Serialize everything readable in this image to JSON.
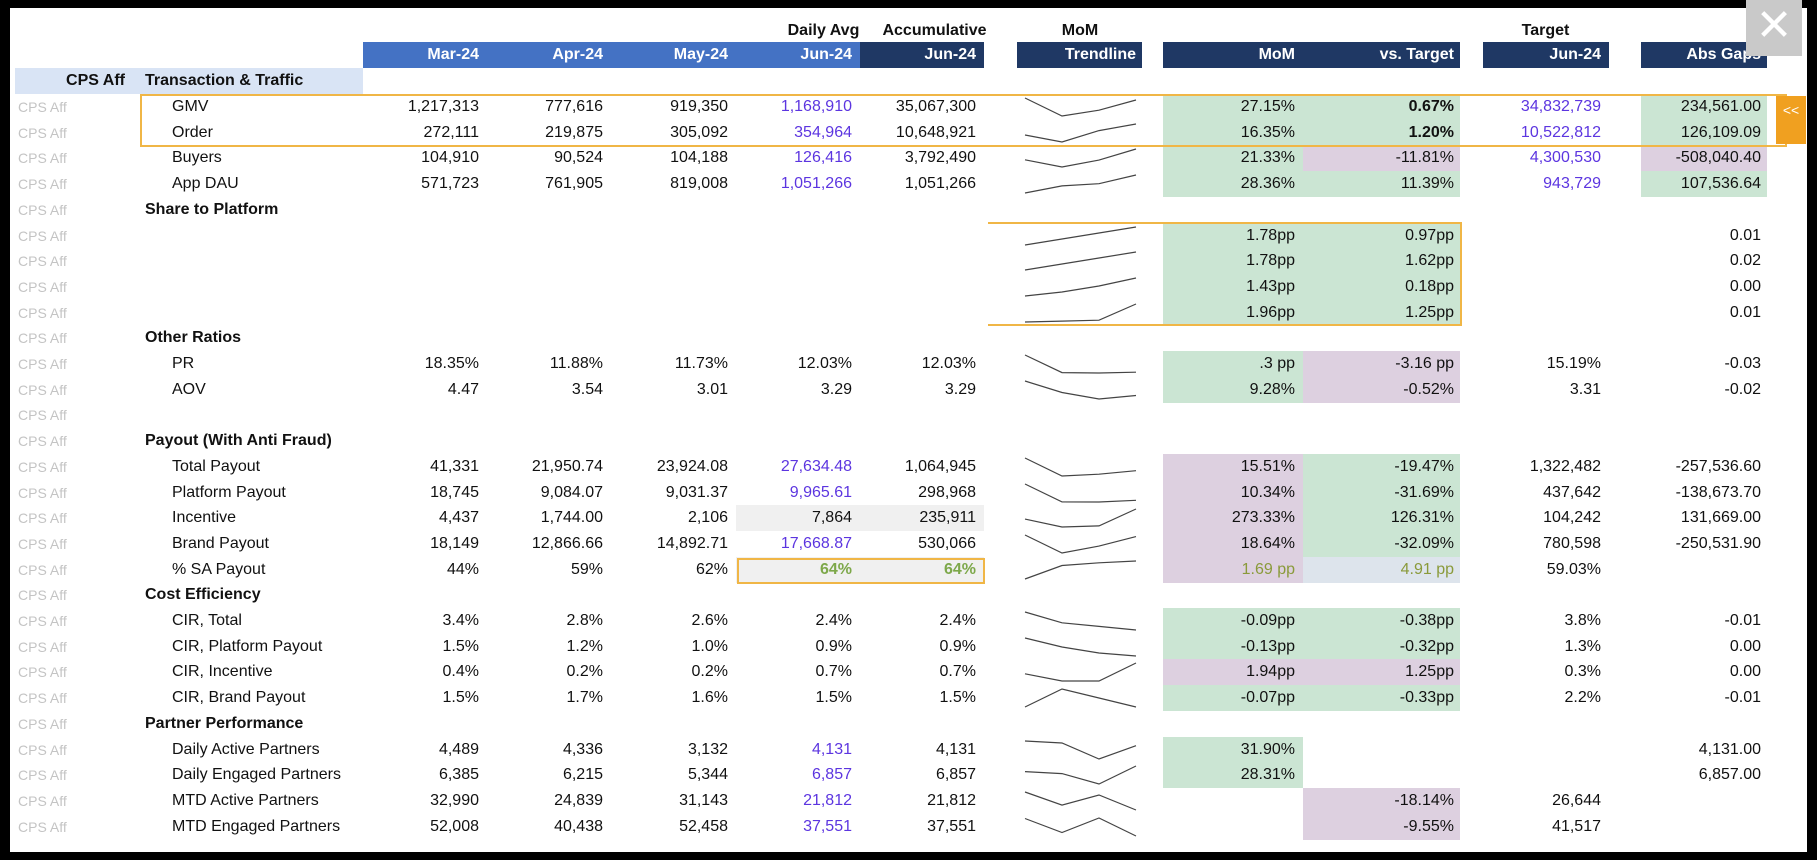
{
  "header": {
    "daily_avg": "Daily Avg",
    "accumulative": "Accumulative",
    "mom_top": "MoM",
    "target_top": "Target",
    "months": [
      "Mar-24",
      "Apr-24",
      "May-24",
      "Jun-24"
    ],
    "acc_month": "Jun-24",
    "trendline": "Trendline",
    "mom": "MoM",
    "vs_target": "vs. Target",
    "target_month": "Jun-24",
    "abs_gaps": "Abs Gaps",
    "channel": "CPS Aff",
    "section": "Transaction & Traffic"
  },
  "row_label": "CPS Aff",
  "expand_marker": "<<",
  "sections": {
    "share": "Share to Platform",
    "other": "Other Ratios",
    "payout": "Payout (With Anti Fraud)",
    "cost": "Cost Efficiency",
    "partner": "Partner Performance"
  },
  "rows": {
    "gmv": {
      "label": "GMV",
      "v": [
        "1,217,313",
        "777,616",
        "919,350",
        "1,168,910",
        "35,067,300"
      ],
      "mom": "27.15%",
      "vs": "0.67%",
      "target": "34,832,739",
      "gap": "234,561.00"
    },
    "order": {
      "label": "Order",
      "v": [
        "272,111",
        "219,875",
        "305,092",
        "354,964",
        "10,648,921"
      ],
      "mom": "16.35%",
      "vs": "1.20%",
      "target": "10,522,812",
      "gap": "126,109.09"
    },
    "buyers": {
      "label": "Buyers",
      "v": [
        "104,910",
        "90,524",
        "104,188",
        "126,416",
        "3,792,490"
      ],
      "mom": "21.33%",
      "vs": "-11.81%",
      "target": "4,300,530",
      "gap": "-508,040.40"
    },
    "dau": {
      "label": "App DAU",
      "v": [
        "571,723",
        "761,905",
        "819,008",
        "1,051,266",
        "1,051,266"
      ],
      "mom": "28.36%",
      "vs": "11.39%",
      "target": "943,729",
      "gap": "107,536.64"
    },
    "s1": {
      "mom": "1.78pp",
      "vs": "0.97pp",
      "gap": "0.01"
    },
    "s2": {
      "mom": "1.78pp",
      "vs": "1.62pp",
      "gap": "0.02"
    },
    "s3": {
      "mom": "1.43pp",
      "vs": "0.18pp",
      "gap": "0.00"
    },
    "s4": {
      "mom": "1.96pp",
      "vs": "1.25pp",
      "gap": "0.01"
    },
    "pr": {
      "label": "PR",
      "v": [
        "18.35%",
        "11.88%",
        "11.73%",
        "12.03%",
        "12.03%"
      ],
      "mom": ".3 pp",
      "vs": "-3.16 pp",
      "target": "15.19%",
      "gap": "-0.03"
    },
    "aov": {
      "label": "AOV",
      "v": [
        "4.47",
        "3.54",
        "3.01",
        "3.29",
        "3.29"
      ],
      "mom": "9.28%",
      "vs": "-0.52%",
      "target": "3.31",
      "gap": "-0.02"
    },
    "total_payout": {
      "label": "Total Payout",
      "v": [
        "41,331",
        "21,950.74",
        "23,924.08",
        "27,634.48",
        "1,064,945"
      ],
      "mom": "15.51%",
      "vs": "-19.47%",
      "target": "1,322,482",
      "gap": "-257,536.60"
    },
    "platform_payout": {
      "label": "Platform Payout",
      "v": [
        "18,745",
        "9,084.07",
        "9,031.37",
        "9,965.61",
        "298,968"
      ],
      "mom": "10.34%",
      "vs": "-31.69%",
      "target": "437,642",
      "gap": "-138,673.70"
    },
    "incentive": {
      "label": "Incentive",
      "v": [
        "4,437",
        "1,744.00",
        "2,106",
        "7,864",
        "235,911"
      ],
      "mom": "273.33%",
      "vs": "126.31%",
      "target": "104,242",
      "gap": "131,669.00"
    },
    "brand_payout": {
      "label": "Brand Payout",
      "v": [
        "18,149",
        "12,866.66",
        "14,892.71",
        "17,668.87",
        "530,066"
      ],
      "mom": "18.64%",
      "vs": "-32.09%",
      "target": "780,598",
      "gap": "-250,531.90"
    },
    "sa_payout": {
      "label": "% SA Payout",
      "v": [
        "44%",
        "59%",
        "62%",
        "64%",
        "64%"
      ],
      "mom": "1.69 pp",
      "vs": "4.91 pp",
      "target": "59.03%"
    },
    "cir_total": {
      "label": "CIR, Total",
      "v": [
        "3.4%",
        "2.8%",
        "2.6%",
        "2.4%",
        "2.4%"
      ],
      "mom": "-0.09pp",
      "vs": "-0.38pp",
      "target": "3.8%",
      "gap": "-0.01"
    },
    "cir_platform": {
      "label": "CIR, Platform Payout",
      "v": [
        "1.5%",
        "1.2%",
        "1.0%",
        "0.9%",
        "0.9%"
      ],
      "mom": "-0.13pp",
      "vs": "-0.32pp",
      "target": "1.3%",
      "gap": "0.00"
    },
    "cir_incentive": {
      "label": "CIR, Incentive",
      "v": [
        "0.4%",
        "0.2%",
        "0.2%",
        "0.7%",
        "0.7%"
      ],
      "mom": "1.94pp",
      "vs": "1.25pp",
      "target": "0.3%",
      "gap": "0.00"
    },
    "cir_brand": {
      "label": "CIR, Brand Payout",
      "v": [
        "1.5%",
        "1.7%",
        "1.6%",
        "1.5%",
        "1.5%"
      ],
      "mom": "-0.07pp",
      "vs": "-0.33pp",
      "target": "2.2%",
      "gap": "-0.01"
    },
    "dap": {
      "label": "Daily Active Partners",
      "v": [
        "4,489",
        "4,336",
        "3,132",
        "4,131",
        "4,131"
      ],
      "mom": "31.90%",
      "gap": "4,131.00"
    },
    "dep": {
      "label": "Daily Engaged Partners",
      "v": [
        "6,385",
        "6,215",
        "5,344",
        "6,857",
        "6,857"
      ],
      "mom": "28.31%",
      "gap": "6,857.00"
    },
    "map": {
      "label": "MTD Active Partners",
      "v": [
        "32,990",
        "24,839",
        "31,143",
        "21,812",
        "21,812"
      ],
      "vs": "-18.14%",
      "target": "26,644"
    },
    "mep": {
      "label": "MTD Engaged Partners",
      "v": [
        "52,008",
        "40,438",
        "52,458",
        "37,551",
        "37,551"
      ],
      "vs": "-9.55%",
      "target": "41,517"
    }
  },
  "colors": {
    "header_blue": "#4472c4",
    "header_navy": "#1f3864",
    "good_green": "#cbe5d3",
    "bad_purple": "#ddd0e0",
    "highlight_orange": "#f0b646",
    "projected_value": "#5c35e0"
  },
  "icons": {
    "close": "close-icon"
  }
}
